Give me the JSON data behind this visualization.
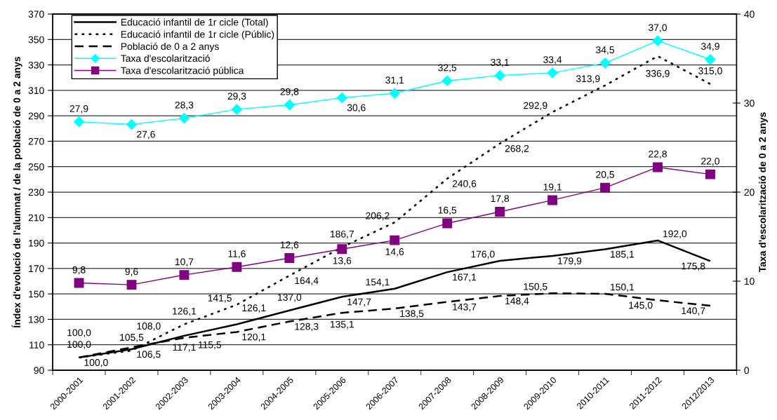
{
  "chart_data": {
    "type": "line",
    "categories": [
      "2000-2001",
      "2001-2002",
      "2002-2003",
      "2003-2004",
      "2004-2005",
      "2005-2006",
      "2006-2007",
      "2007-2008",
      "2008-2009",
      "2009-2010",
      "2010-2011",
      "2011-2012",
      "2012/2013"
    ],
    "ylabel": "Índex d'evolució de l'alumnat / de la població de 0 a 2 anys",
    "y2label": "Taxa d'escolarització de 0 a 2 anys",
    "ylim": [
      90,
      370
    ],
    "yticks": [
      90,
      110,
      130,
      150,
      170,
      190,
      210,
      230,
      250,
      270,
      290,
      310,
      330,
      350,
      370
    ],
    "y2lim": [
      0,
      40
    ],
    "y2ticks": [
      0,
      10,
      20,
      30,
      40
    ],
    "grid": "y",
    "legend": "top left",
    "series": [
      {
        "name": "Educació infantil de 1r cicle (Total)",
        "color": "#000000",
        "line_style": "solid",
        "marker": "none",
        "values": [
          100.0,
          106.5,
          117.1,
          126.1,
          137.0,
          147.7,
          154.1,
          167.1,
          176.0,
          179.9,
          185.1,
          192.0,
          175.8
        ],
        "value_labels": [
          "100,0",
          "106,5",
          "117,1",
          "126,1",
          "137,0",
          "147,7",
          "154,1",
          "167,1",
          "176,0",
          "179,9",
          "185,1",
          "192,0",
          "175,8"
        ]
      },
      {
        "name": "Educació infantil de 1r cicle (Públic)",
        "color": "#000000",
        "line_style": "dotted",
        "marker": "none",
        "values": [
          100.0,
          105.5,
          126.1,
          141.5,
          164.4,
          186.7,
          206.2,
          240.6,
          268.2,
          292.9,
          313.9,
          336.9,
          315.0
        ],
        "value_labels": [
          "100,0",
          "105,5",
          "126,1",
          "141,5",
          "164,4",
          "186,7",
          "206,2",
          "240,6",
          "268,2",
          "292,9",
          "313,9",
          "336,9",
          "315,0"
        ]
      },
      {
        "name": "Població de 0 a 2 anys",
        "color": "#000000",
        "line_style": "dashed",
        "marker": "none",
        "values": [
          100.0,
          108.0,
          115.5,
          120.1,
          128.3,
          135.1,
          138.5,
          143.7,
          148.4,
          150.5,
          150.1,
          145.0,
          140.7
        ],
        "value_labels": [
          "100,0",
          "108,0",
          "115,5",
          "120,1",
          "128,3",
          "135,1",
          "138,5",
          "143,7",
          "148,4",
          "150,5",
          "150,1",
          "145,0",
          "140,7"
        ]
      },
      {
        "name": "Taxa d'escolarització",
        "color": "#00ffff",
        "line_style": "solid",
        "marker": "diamond",
        "axis": "y2",
        "values": [
          27.9,
          27.6,
          28.3,
          29.3,
          29.8,
          30.6,
          31.1,
          32.5,
          33.1,
          33.4,
          34.5,
          37.0,
          34.9
        ],
        "value_labels": [
          "27,9",
          "27,6",
          "28,3",
          "29,3",
          "29,8",
          "30,6",
          "31,1",
          "32,5",
          "33,1",
          "33,4",
          "34,5",
          "37,0",
          "34,9"
        ]
      },
      {
        "name": "Taxa d'escolarització pública",
        "color": "#800080",
        "line_style": "solid",
        "marker": "square",
        "axis": "y2",
        "values": [
          9.8,
          9.6,
          10.7,
          11.6,
          12.6,
          13.6,
          14.6,
          16.5,
          17.8,
          19.1,
          20.5,
          22.8,
          22.0
        ],
        "value_labels": [
          "9,8",
          "9,6",
          "10,7",
          "11,6",
          "12,6",
          "13,6",
          "14,6",
          "16,5",
          "17,8",
          "19,1",
          "20,5",
          "22,8",
          "22,0"
        ]
      }
    ]
  }
}
